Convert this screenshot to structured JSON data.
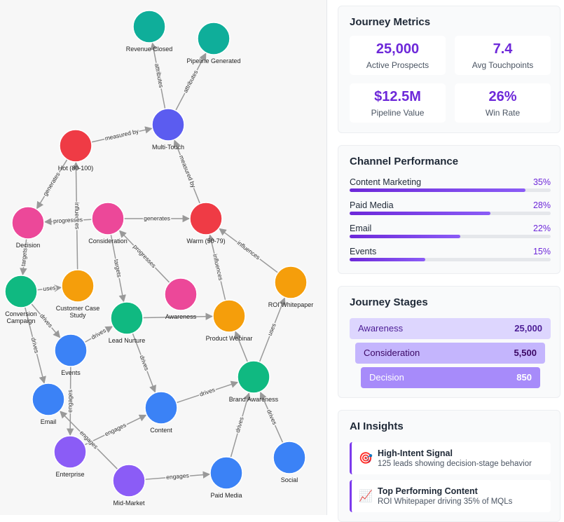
{
  "graph": {
    "nodes": [
      {
        "label": "Revenue Closed",
        "color": "#0fae9a"
      },
      {
        "label": "Pipeline Generated",
        "color": "#0fae9a"
      },
      {
        "label": "Multi-Touch",
        "color": "#5b5cf0"
      },
      {
        "label": "Hot (80-100)",
        "color": "#ef3b45"
      },
      {
        "label": "Decision",
        "color": "#ec4899"
      },
      {
        "label": "Consideration",
        "color": "#ec4899"
      },
      {
        "label": "Warm (50-79)",
        "color": "#ef3b45"
      },
      {
        "label": "Conversion Campaign",
        "color": "#10b981"
      },
      {
        "label": "Customer Case Study",
        "color": "#f59e0b"
      },
      {
        "label": "Awareness",
        "color": "#ec4899"
      },
      {
        "label": "Lead Nurture",
        "color": "#10b981"
      },
      {
        "label": "Product Webinar",
        "color": "#f59e0b"
      },
      {
        "label": "ROI Whitepaper",
        "color": "#f59e0b"
      },
      {
        "label": "Events",
        "color": "#3b82f6"
      },
      {
        "label": "Brand Awareness",
        "color": "#10b981"
      },
      {
        "label": "Email",
        "color": "#3b82f6"
      },
      {
        "label": "Content",
        "color": "#3b82f6"
      },
      {
        "label": "Enterprise",
        "color": "#8b5cf6"
      },
      {
        "label": "Mid-Market",
        "color": "#8b5cf6"
      },
      {
        "label": "Paid Media",
        "color": "#3b82f6"
      },
      {
        "label": "Social",
        "color": "#3b82f6"
      }
    ],
    "edges": [
      {
        "from": 2,
        "to": 0,
        "label": "attributes"
      },
      {
        "from": 2,
        "to": 1,
        "label": "attributes"
      },
      {
        "from": 3,
        "to": 2,
        "label": "measured by"
      },
      {
        "from": 6,
        "to": 2,
        "label": "measured by"
      },
      {
        "from": 3,
        "to": 4,
        "label": "generates"
      },
      {
        "from": 8,
        "to": 3,
        "label": "influences"
      },
      {
        "from": 5,
        "to": 4,
        "label": "progresses"
      },
      {
        "from": 5,
        "to": 6,
        "label": "generates"
      },
      {
        "from": 4,
        "to": 7,
        "label": "targets"
      },
      {
        "from": 7,
        "to": 8,
        "label": "uses"
      },
      {
        "from": 5,
        "to": 10,
        "label": "targets"
      },
      {
        "from": 9,
        "to": 5,
        "label": "progresses"
      },
      {
        "from": 11,
        "to": 6,
        "label": "influences"
      },
      {
        "from": 12,
        "to": 6,
        "label": "influences"
      },
      {
        "from": 10,
        "to": 11
      },
      {
        "from": 14,
        "to": 11
      },
      {
        "from": 7,
        "to": 13,
        "label": "drives"
      },
      {
        "from": 7,
        "to": 15,
        "label": "drives"
      },
      {
        "from": 13,
        "to": 10,
        "label": "drives"
      },
      {
        "from": 13,
        "to": 17,
        "label": "engages"
      },
      {
        "from": 10,
        "to": 16,
        "label": "drives"
      },
      {
        "from": 16,
        "to": 14,
        "label": "drives"
      },
      {
        "from": 14,
        "to": 12,
        "label": "uses"
      },
      {
        "from": 17,
        "to": 16,
        "label": "engages"
      },
      {
        "from": 18,
        "to": 15,
        "label": "engages"
      },
      {
        "from": 18,
        "to": 19,
        "label": "engages"
      },
      {
        "from": 19,
        "to": 14,
        "label": "drives"
      },
      {
        "from": 20,
        "to": 14,
        "label": "drives"
      }
    ]
  },
  "metrics": {
    "title": "Journey Metrics",
    "items": [
      {
        "value": "25,000",
        "label": "Active Prospects"
      },
      {
        "value": "7.4",
        "label": "Avg Touchpoints"
      },
      {
        "value": "$12.5M",
        "label": "Pipeline Value"
      },
      {
        "value": "26%",
        "label": "Win Rate"
      }
    ]
  },
  "channels": {
    "title": "Channel Performance",
    "items": [
      {
        "name": "Content Marketing",
        "value": 35,
        "label": "35%"
      },
      {
        "name": "Paid Media",
        "value": 28,
        "label": "28%"
      },
      {
        "name": "Email",
        "value": 22,
        "label": "22%"
      },
      {
        "name": "Events",
        "value": 15,
        "label": "15%"
      }
    ]
  },
  "stages": {
    "title": "Journey Stages",
    "items": [
      {
        "name": "Awareness",
        "value": "25,000"
      },
      {
        "name": "Consideration",
        "value": "5,500"
      },
      {
        "name": "Decision",
        "value": "850"
      }
    ]
  },
  "insights": {
    "title": "AI Insights",
    "items": [
      {
        "icon": "🎯",
        "title": "High-Intent Signal",
        "text": "125 leads showing decision-stage behavior"
      },
      {
        "icon": "📈",
        "title": "Top Performing Content",
        "text": "ROI Whitepaper driving 35% of MQLs"
      }
    ]
  }
}
